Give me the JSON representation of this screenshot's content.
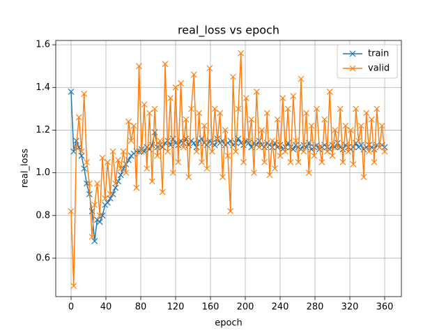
{
  "chart_data": {
    "type": "line",
    "title": "real_loss vs epoch",
    "x_label": "epoch",
    "y_label": "real_loss",
    "x": [
      0,
      3,
      6,
      9,
      12,
      15,
      18,
      21,
      24,
      27,
      30,
      33,
      36,
      39,
      42,
      45,
      48,
      51,
      54,
      57,
      60,
      63,
      66,
      69,
      72,
      75,
      78,
      81,
      84,
      87,
      90,
      93,
      96,
      99,
      102,
      105,
      108,
      111,
      114,
      117,
      120,
      123,
      126,
      129,
      132,
      135,
      138,
      141,
      144,
      147,
      150,
      153,
      156,
      159,
      162,
      165,
      168,
      171,
      174,
      177,
      180,
      183,
      186,
      189,
      192,
      195,
      198,
      201,
      204,
      207,
      210,
      213,
      216,
      219,
      222,
      225,
      228,
      231,
      234,
      237,
      240,
      243,
      246,
      249,
      252,
      255,
      258,
      261,
      264,
      267,
      270,
      273,
      276,
      279,
      282,
      285,
      288,
      291,
      294,
      297,
      300,
      303,
      306,
      309,
      312,
      315,
      318,
      321,
      324,
      327,
      330,
      333,
      336,
      339,
      342,
      345,
      348,
      351,
      354,
      357,
      360
    ],
    "series": [
      {
        "name": "train",
        "color": "#1f77b4",
        "values": [
          1.38,
          1.1,
          1.15,
          1.12,
          1.08,
          1.02,
          0.95,
          0.9,
          0.82,
          0.68,
          0.78,
          0.77,
          0.8,
          0.85,
          0.86,
          0.88,
          0.9,
          0.93,
          0.96,
          0.99,
          1.02,
          1.04,
          1.06,
          1.08,
          1.09,
          1.1,
          1.1,
          1.11,
          1.1,
          1.12,
          1.11,
          1.13,
          1.19,
          1.12,
          1.13,
          1.12,
          1.14,
          1.15,
          1.13,
          1.16,
          1.14,
          1.13,
          1.15,
          1.14,
          1.16,
          1.13,
          1.15,
          1.14,
          1.12,
          1.15,
          1.16,
          1.14,
          1.13,
          1.15,
          1.14,
          1.13,
          1.16,
          1.14,
          1.15,
          1.13,
          1.14,
          1.15,
          1.13,
          1.14,
          1.16,
          1.14,
          1.13,
          1.15,
          1.14,
          1.12,
          1.14,
          1.13,
          1.15,
          1.13,
          1.12,
          1.14,
          1.13,
          1.12,
          1.14,
          1.12,
          1.13,
          1.11,
          1.12,
          1.14,
          1.12,
          1.11,
          1.13,
          1.12,
          1.11,
          1.13,
          1.12,
          1.14,
          1.11,
          1.12,
          1.13,
          1.11,
          1.12,
          1.13,
          1.12,
          1.11,
          1.13,
          1.12,
          1.14,
          1.12,
          1.11,
          1.13,
          1.12,
          1.11,
          1.12,
          1.14,
          1.12,
          1.13,
          1.11,
          1.12,
          1.13,
          1.12,
          1.11,
          1.13,
          1.12,
          1.13,
          1.12
        ]
      },
      {
        "name": "valid",
        "color": "#ff7f0e",
        "values": [
          0.82,
          0.47,
          1.12,
          1.26,
          1.1,
          1.37,
          1.05,
          0.95,
          0.7,
          0.85,
          0.95,
          0.8,
          1.07,
          0.88,
          1.05,
          0.9,
          1.1,
          0.95,
          1.06,
          1.02,
          1.1,
          1.0,
          1.24,
          1.15,
          1.22,
          0.93,
          1.5,
          1.1,
          1.32,
          1.02,
          1.28,
          0.96,
          1.3,
          1.08,
          1.15,
          0.91,
          1.51,
          1.1,
          1.35,
          1.0,
          1.4,
          1.05,
          1.42,
          1.12,
          1.25,
          0.98,
          1.3,
          1.46,
          1.1,
          1.28,
          1.05,
          1.22,
          1.02,
          1.49,
          1.1,
          1.3,
          1.15,
          1.28,
          0.98,
          1.2,
          1.08,
          0.82,
          1.45,
          1.1,
          1.3,
          1.56,
          1.05,
          1.35,
          1.15,
          1.25,
          1.0,
          1.38,
          1.12,
          1.2,
          1.05,
          1.28,
          0.99,
          1.15,
          1.02,
          1.25,
          1.08,
          1.35,
          1.1,
          1.3,
          1.05,
          1.36,
          1.15,
          1.05,
          1.44,
          1.1,
          1.28,
          1.0,
          1.22,
          1.08,
          1.3,
          1.12,
          1.05,
          1.25,
          1.1,
          1.38,
          1.08,
          1.2,
          1.12,
          1.3,
          1.05,
          1.22,
          1.1,
          1.2,
          1.04,
          1.3,
          1.15,
          1.22,
          0.98,
          1.28,
          1.1,
          1.25,
          1.05,
          1.3,
          1.12,
          1.22,
          1.1
        ]
      }
    ],
    "xlim": [
      -17.6,
      379.2
    ],
    "xticks": [
      0,
      40,
      80,
      120,
      160,
      200,
      240,
      280,
      320,
      360
    ],
    "ylim": [
      0.42,
      1.62
    ],
    "yticks": [
      0.6,
      0.8,
      {
        "value": 1,
        "label": "1.0"
      },
      1.2,
      1.4,
      1.6
    ],
    "grid": true,
    "legend": "upper right"
  }
}
